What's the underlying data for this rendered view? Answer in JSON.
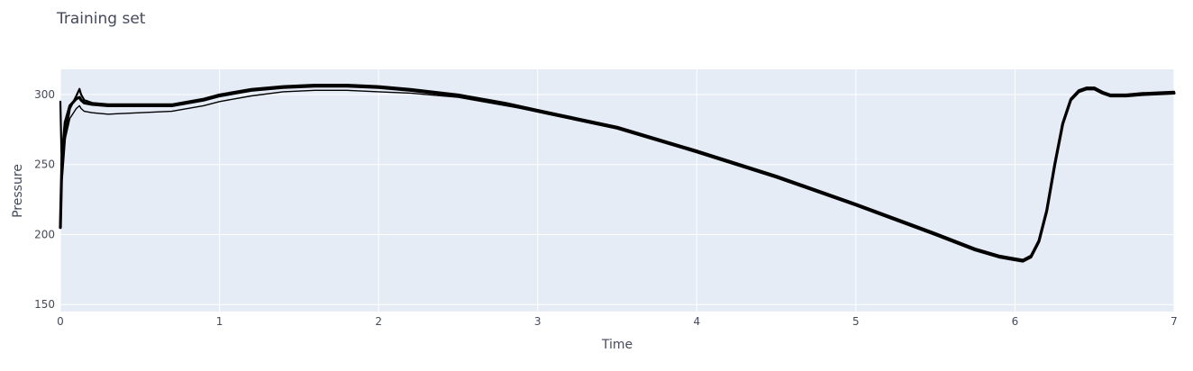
{
  "chart_data": {
    "type": "line",
    "title": "Training set",
    "xlabel": "Time",
    "ylabel": "Pressure",
    "xlim": [
      0,
      7
    ],
    "ylim": [
      145,
      318
    ],
    "xticks": [
      0,
      1,
      2,
      3,
      4,
      5,
      6,
      7
    ],
    "yticks": [
      150,
      200,
      250,
      300
    ],
    "grid": true,
    "legend": "none",
    "colors": {
      "plot_bg": "#e5ecf6",
      "grid": "#ffffff",
      "line": "#000000"
    },
    "series": [
      {
        "x": [
          0,
          0.01,
          0.03,
          0.06,
          0.1,
          0.12,
          0.13,
          0.15,
          0.2,
          0.3,
          0.5,
          0.7,
          0.9,
          1.0,
          1.2,
          1.4,
          1.6,
          1.8,
          2.0,
          2.2,
          2.5,
          2.8,
          3.0,
          3.5,
          4.0,
          4.5,
          5.0,
          5.5,
          5.75,
          5.9,
          6.0,
          6.05,
          6.1,
          6.15,
          6.2,
          6.25,
          6.3,
          6.35,
          6.4,
          6.45,
          6.5,
          6.55,
          6.6,
          6.7,
          6.8,
          7.0
        ],
        "y": [
          205,
          255,
          280,
          292,
          297,
          298,
          296,
          294,
          293,
          292,
          292,
          292,
          296,
          299,
          303,
          305,
          306,
          306,
          305,
          303,
          299,
          293,
          288,
          276,
          259,
          241,
          221,
          200,
          189,
          184,
          182,
          181,
          184,
          195,
          217,
          250,
          279,
          296,
          302,
          304,
          304,
          301,
          299,
          299,
          300,
          301
        ]
      },
      {
        "x": [
          0,
          0.01,
          0.03,
          0.06,
          0.1,
          0.12,
          0.13,
          0.15,
          0.2,
          0.3,
          0.5,
          0.7,
          0.9,
          1.0,
          1.2,
          1.4,
          1.6,
          1.8,
          2.0,
          2.2,
          2.5,
          2.8,
          3.0,
          3.5,
          4.0,
          4.5,
          5.0,
          5.5,
          5.75,
          5.9,
          6.0,
          6.05,
          6.1,
          6.15,
          6.2,
          6.25,
          6.3,
          6.35,
          6.4,
          6.45,
          6.5,
          6.55,
          6.6,
          6.7,
          6.8,
          7.0
        ],
        "y": [
          295,
          240,
          270,
          290,
          299,
          304,
          300,
          296,
          294,
          293,
          293,
          293,
          297,
          300,
          304,
          306,
          307,
          307,
          306,
          304,
          300,
          294,
          289,
          277,
          260,
          242,
          222,
          201,
          190,
          185,
          183,
          182,
          185,
          196,
          218,
          251,
          280,
          297,
          303,
          305,
          305,
          302,
          300,
          300,
          301,
          302
        ]
      },
      {
        "x": [
          0,
          0.01,
          0.03,
          0.06,
          0.1,
          0.12,
          0.13,
          0.15,
          0.2,
          0.3,
          0.5,
          0.7,
          0.9,
          1.0,
          1.2,
          1.4,
          1.6,
          1.8,
          2.0,
          2.2,
          2.5,
          2.8,
          3.0,
          3.5,
          4.0,
          4.5,
          5.0,
          5.5,
          5.75,
          5.9,
          6.0,
          6.05,
          6.1,
          6.15,
          6.2,
          6.25,
          6.3,
          6.35,
          6.4,
          6.45,
          6.5,
          6.55,
          6.6,
          6.7,
          6.8,
          7.0
        ],
        "y": [
          210,
          245,
          268,
          283,
          290,
          292,
          290,
          288,
          287,
          286,
          287,
          288,
          292,
          295,
          299,
          302,
          303,
          303,
          302,
          301,
          298,
          292,
          288,
          276,
          259,
          241,
          221,
          200,
          189,
          184,
          182,
          181,
          184,
          195,
          217,
          250,
          279,
          296,
          302,
          304,
          304,
          301,
          299,
          299,
          300,
          301
        ]
      }
    ]
  }
}
